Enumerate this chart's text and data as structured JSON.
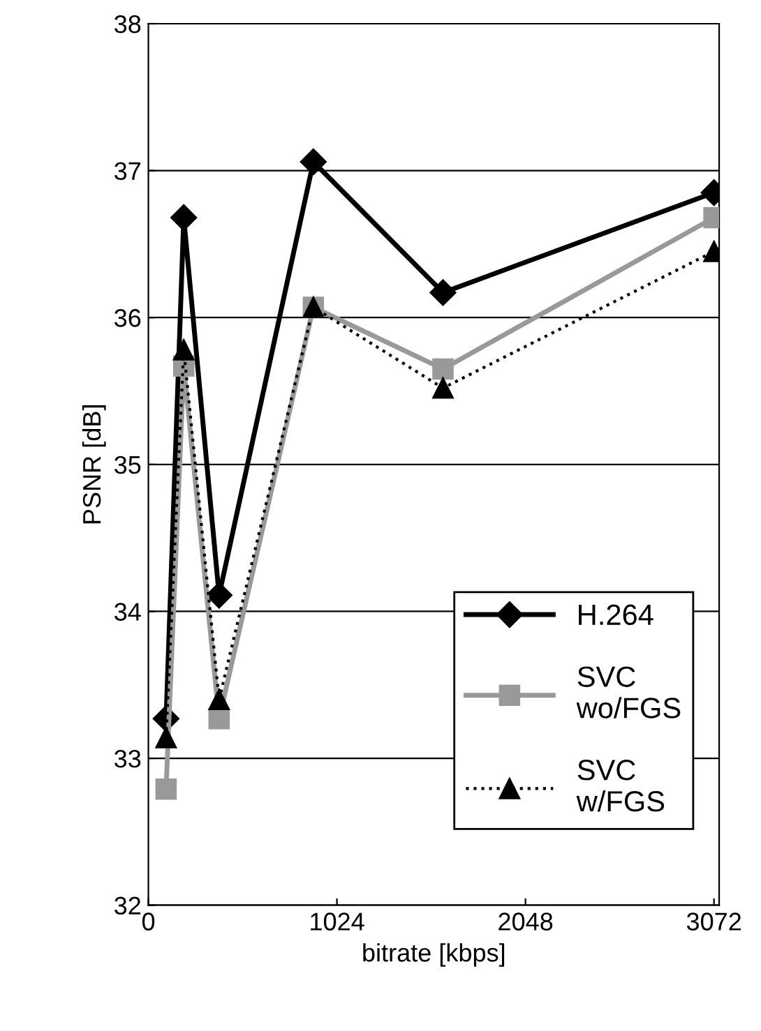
{
  "chart_data": {
    "type": "line",
    "xlabel": "bitrate [kbps]",
    "ylabel": "PSNR [dB]",
    "xlim": [
      0,
      3100
    ],
    "xticks": [
      0,
      1024,
      2048,
      3072
    ],
    "ylim": [
      32,
      38
    ],
    "yticks": [
      32,
      33,
      34,
      35,
      36,
      37,
      38
    ],
    "grid": "y",
    "legend": "bottom right",
    "series": [
      {
        "name": "H.264",
        "color": "#000000",
        "marker": "diamond",
        "line_style": "solid",
        "x": [
          96,
          192,
          384,
          896,
          1600,
          3072
        ],
        "values": [
          33.27,
          36.68,
          34.11,
          37.06,
          36.17,
          36.85
        ]
      },
      {
        "name": "SVC\nwo/FGS",
        "color": "#999999",
        "marker": "square",
        "line_style": "solid",
        "x": [
          96,
          192,
          384,
          896,
          1600,
          3072
        ],
        "values": [
          32.79,
          35.67,
          33.27,
          36.07,
          35.65,
          36.68
        ]
      },
      {
        "name": "SVC\nw/FGS",
        "color": "#000000",
        "marker": "triangle",
        "line_style": "dotted",
        "x": [
          96,
          192,
          384,
          896,
          1600,
          3072
        ],
        "values": [
          33.14,
          35.78,
          33.4,
          36.07,
          35.52,
          36.45
        ]
      }
    ]
  }
}
